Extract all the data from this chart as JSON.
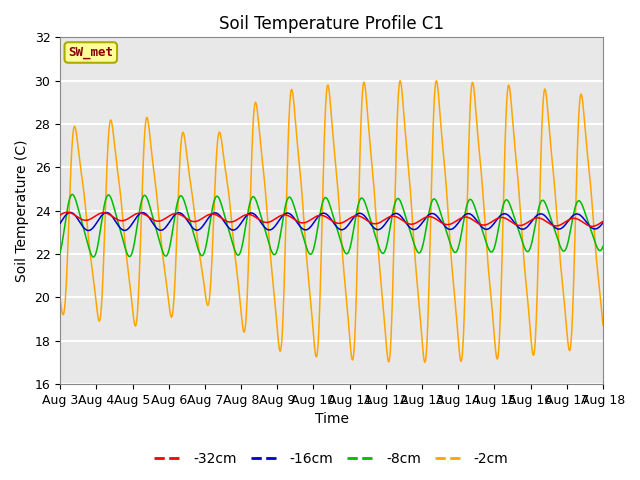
{
  "title": "Soil Temperature Profile C1",
  "xlabel": "Time",
  "ylabel": "Soil Temperature (C)",
  "ylim": [
    16,
    32
  ],
  "yticks": [
    16,
    18,
    20,
    22,
    24,
    26,
    28,
    30,
    32
  ],
  "days": 15,
  "x_tick_labels": [
    "Aug 3",
    "Aug 4",
    "Aug 5",
    "Aug 6",
    "Aug 7",
    "Aug 8",
    "Aug 9",
    "Aug 10",
    "Aug 11",
    "Aug 12",
    "Aug 13",
    "Aug 14",
    "Aug 15",
    "Aug 16",
    "Aug 17",
    "Aug 18"
  ],
  "annotation_text": "SW_met",
  "annotation_box_facecolor": "#FFFF99",
  "annotation_box_edgecolor": "#AAAA00",
  "annotation_text_color": "#8B0000",
  "colors": {
    "-32cm": "#FF0000",
    "-16cm": "#0000CC",
    "-8cm": "#00BB00",
    "-2cm": "#FFA500"
  },
  "plot_bg_color": "#E8E8E8",
  "grid_color": "#FFFFFF",
  "title_fontsize": 12,
  "axis_label_fontsize": 10,
  "tick_fontsize": 9,
  "legend_fontsize": 10
}
